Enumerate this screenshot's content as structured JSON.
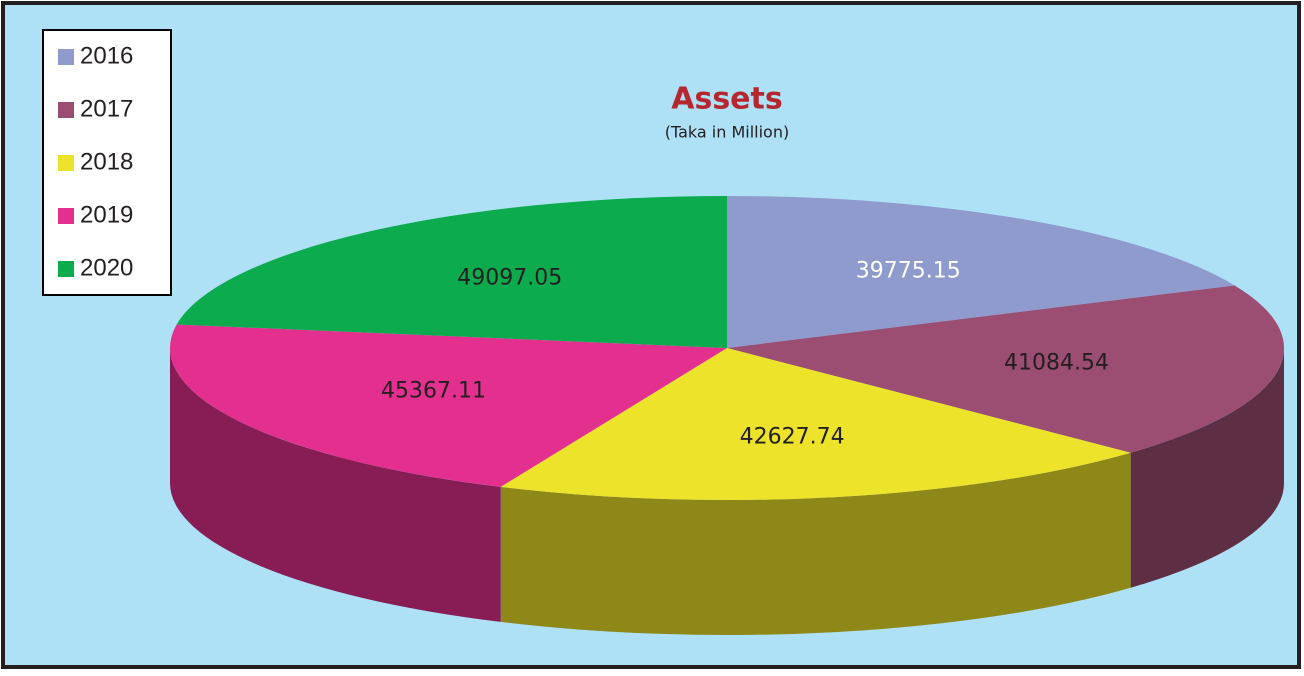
{
  "chart_data": {
    "type": "pie3d",
    "title": "Assets",
    "subtitle": "(Taka in Million)",
    "categories": [
      "2016",
      "2017",
      "2018",
      "2019",
      "2020"
    ],
    "values": [
      39775.15,
      41084.54,
      42627.74,
      45367.11,
      49097.05
    ],
    "colors": [
      "#8e9bcc",
      "#9b4d72",
      "#ede32a",
      "#e3308f",
      "#0bab4e"
    ],
    "label_colors": [
      "#ffffff",
      "#231f20",
      "#231f20",
      "#231f20",
      "#231f20"
    ],
    "legend": "top-left"
  }
}
